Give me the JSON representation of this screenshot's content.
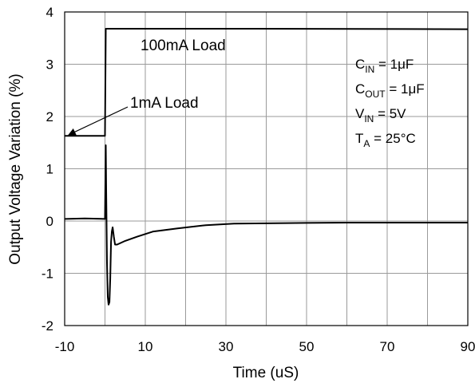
{
  "chart_data": {
    "type": "line",
    "xlabel": "Time (uS)",
    "ylabel": "Output Voltage Variation (%)",
    "xlim": [
      -10,
      90
    ],
    "ylim": [
      -2,
      4
    ],
    "x_ticks": [
      "-10",
      "10",
      "30",
      "50",
      "70",
      "90"
    ],
    "x_tick_values": [
      -10,
      10,
      30,
      50,
      70,
      90
    ],
    "x_grid_values": [
      -10,
      0,
      10,
      20,
      30,
      40,
      50,
      60,
      70,
      80,
      90
    ],
    "y_ticks": [
      "-2",
      "-1",
      "0",
      "1",
      "2",
      "3",
      "4"
    ],
    "y_tick_values": [
      -2,
      -1,
      0,
      1,
      2,
      3,
      4
    ],
    "grid": true,
    "series": [
      {
        "color": "#000000",
        "x": [
          -10,
          -0.2,
          0,
          0.2,
          37,
          90
        ],
        "y": [
          1.63,
          1.63,
          1.63,
          3.68,
          3.68,
          3.67
        ]
      },
      {
        "color": "#000000",
        "x": [
          -10,
          -5,
          0,
          0.2,
          0.3,
          0.5,
          0.7,
          0.9,
          1.1,
          1.3,
          1.5,
          1.7,
          1.9,
          2.2,
          2.5,
          3,
          5,
          8,
          12,
          18,
          25,
          32,
          45,
          60,
          75,
          90
        ],
        "y": [
          0.04,
          0.05,
          0.04,
          1.45,
          0.6,
          -0.8,
          -1.45,
          -1.6,
          -1.55,
          -1.1,
          -0.4,
          -0.2,
          -0.12,
          -0.3,
          -0.45,
          -0.45,
          -0.38,
          -0.3,
          -0.2,
          -0.14,
          -0.08,
          -0.05,
          -0.04,
          -0.03,
          -0.03,
          -0.03
        ]
      }
    ],
    "annotations": {
      "load_100ma": "100mA Load",
      "load_1ma": "1mA Load",
      "arrow_target": {
        "x": -9,
        "y": 1.65
      },
      "conditions": [
        {
          "main": "C",
          "sub": "IN",
          "rest": " = 1μF"
        },
        {
          "main": "C",
          "sub": "OUT",
          "rest": " = 1μF"
        },
        {
          "main": "V",
          "sub": "IN",
          "rest": " = 5V"
        },
        {
          "main": "T",
          "sub": "A",
          "rest": " = 25°C"
        }
      ]
    }
  }
}
